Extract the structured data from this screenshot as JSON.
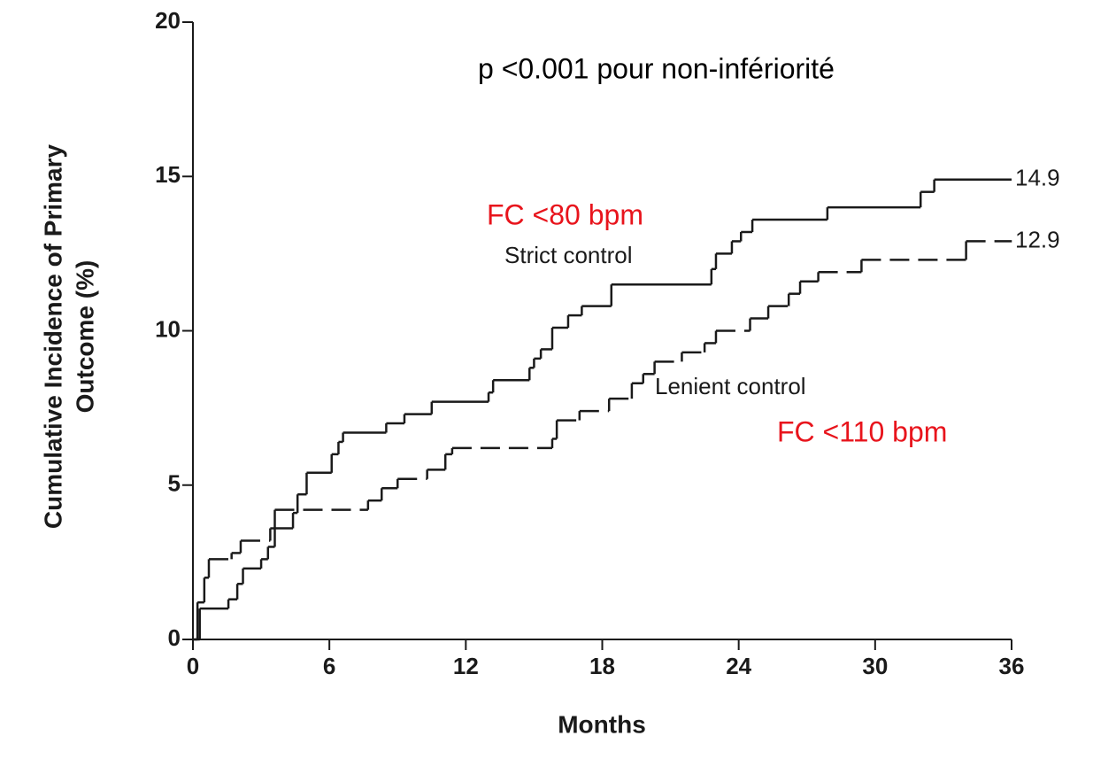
{
  "chart_data": {
    "type": "step",
    "xlabel": "Months",
    "ylabel": [
      "Cumulative Incidence of Primary",
      "Outcome (%)"
    ],
    "xlim": [
      0,
      36
    ],
    "ylim": [
      0,
      20
    ],
    "xticks": [
      0,
      6,
      12,
      18,
      24,
      30,
      36
    ],
    "yticks": [
      0,
      5,
      10,
      15,
      20
    ],
    "grid": false,
    "annotations": [
      {
        "text": "p <0.001 pour non-infériorité",
        "color": "#000000"
      },
      {
        "text": "FC <80 bpm",
        "color": "#e8141c"
      },
      {
        "text": "FC <110 bpm",
        "color": "#e8141c"
      }
    ],
    "series": [
      {
        "name": "Strict control",
        "color": "#1a1a1a",
        "dashed": false,
        "x": [
          0,
          0.3,
          1.56,
          1.95,
          2.2,
          3.0,
          3.3,
          3.6,
          4.4,
          4.6,
          5.0,
          6.1,
          6.4,
          6.6,
          8.5,
          9.3,
          10.5,
          13.0,
          13.2,
          14.8,
          15.0,
          15.3,
          15.8,
          16.5,
          17.1,
          18.4,
          22.8,
          23.0,
          23.7,
          24.1,
          24.6,
          27.9,
          32.0,
          32.6,
          36
        ],
        "values": [
          0,
          1.0,
          1.3,
          1.8,
          2.3,
          2.6,
          3.0,
          3.6,
          4.1,
          4.7,
          5.4,
          6.0,
          6.4,
          6.7,
          7.0,
          7.3,
          7.7,
          8.0,
          8.4,
          8.8,
          9.1,
          9.4,
          10.1,
          10.5,
          10.8,
          11.5,
          12.0,
          12.5,
          12.9,
          13.2,
          13.6,
          14.0,
          14.5,
          14.9,
          14.9
        ]
      },
      {
        "name": "Lenient control",
        "color": "#1a1a1a",
        "dashed": true,
        "x": [
          0,
          0.2,
          0.5,
          0.7,
          1.7,
          2.1,
          3.4,
          3.6,
          7.7,
          8.3,
          9.0,
          10.3,
          11.1,
          11.4,
          15.8,
          16.0,
          17.0,
          18.3,
          19.3,
          19.8,
          20.3,
          21.5,
          22.5,
          23.0,
          24.5,
          25.3,
          26.2,
          26.7,
          27.5,
          29.4,
          34.0,
          36
        ],
        "values": [
          0,
          1.2,
          2.0,
          2.6,
          2.8,
          3.2,
          3.6,
          4.2,
          4.5,
          4.9,
          5.2,
          5.5,
          6.0,
          6.2,
          6.5,
          7.1,
          7.4,
          7.8,
          8.3,
          8.6,
          9.0,
          9.3,
          9.6,
          10.0,
          10.4,
          10.8,
          11.2,
          11.6,
          11.9,
          12.3,
          12.9,
          12.9
        ]
      }
    ]
  }
}
